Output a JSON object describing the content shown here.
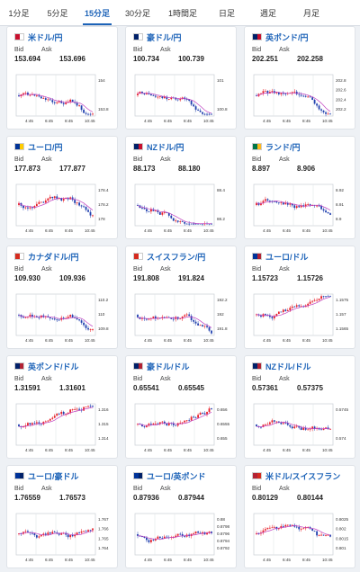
{
  "tabs": [
    {
      "label": "1分足",
      "w": 42
    },
    {
      "label": "5分足",
      "w": 44
    },
    {
      "label": "15分足",
      "w": 44,
      "active": true
    },
    {
      "label": "30分足",
      "w": 46
    },
    {
      "label": "1時間足",
      "w": 54
    },
    {
      "label": "日足",
      "w": 44
    },
    {
      "label": "週足",
      "w": 48
    },
    {
      "label": "月足",
      "w": 48
    }
  ],
  "labels": {
    "bid": "Bid",
    "ask": "Ask"
  },
  "pairs": [
    {
      "name": "米ドル/円",
      "bid": "153.694",
      "ask": "153.696",
      "flag": [
        "#c8102e",
        "#ffffff"
      ],
      "yticks": [
        "154",
        "153.8"
      ],
      "xticks": [
        "4:45",
        "6:45",
        "8:45",
        "10:45"
      ],
      "trend": "fall"
    },
    {
      "name": "豪ドル/円",
      "bid": "100.734",
      "ask": "100.739",
      "flag": [
        "#012169",
        "#ffffff"
      ],
      "yticks": [
        "101",
        "100.8"
      ],
      "xticks": [
        "4:45",
        "6:45",
        "8:45",
        "10:45"
      ],
      "trend": "fall"
    },
    {
      "name": "英ポンド/円",
      "bid": "202.251",
      "ask": "202.258",
      "flag": [
        "#012169",
        "#c8102e"
      ],
      "yticks": [
        "202.8",
        "202.6",
        "202.4",
        "202.2"
      ],
      "xticks": [
        "4:45",
        "6:45",
        "8:45",
        "10:45"
      ],
      "trend": "fall"
    },
    {
      "name": "ユーロ/円",
      "bid": "177.873",
      "ask": "177.877",
      "flag": [
        "#003399",
        "#ffcc00"
      ],
      "yticks": [
        "178.4",
        "178.2",
        "178"
      ],
      "xticks": [
        "4:45",
        "6:45",
        "8:45",
        "10:45"
      ],
      "trend": "fall"
    },
    {
      "name": "NZドル/円",
      "bid": "88.173",
      "ask": "88.180",
      "flag": [
        "#012169",
        "#c8102e"
      ],
      "yticks": [
        "88.4",
        "88.2"
      ],
      "xticks": [
        "4:45",
        "6:45",
        "8:45",
        "10:45"
      ],
      "trend": "fall"
    },
    {
      "name": "ランド/円",
      "bid": "8.897",
      "ask": "8.906",
      "flag": [
        "#007749",
        "#ffb81c"
      ],
      "yticks": [
        "8.92",
        "8.91",
        "8.9"
      ],
      "xticks": [
        "4:45",
        "6:45",
        "8:45",
        "10:45"
      ],
      "trend": "fall"
    },
    {
      "name": "カナダドル/円",
      "bid": "109.930",
      "ask": "109.936",
      "flag": [
        "#d52b1e",
        "#ffffff"
      ],
      "yticks": [
        "110.2",
        "110",
        "109.8"
      ],
      "xticks": [
        "4:45",
        "6:45",
        "8:45",
        "10:45"
      ],
      "trend": "fall"
    },
    {
      "name": "スイスフラン/円",
      "bid": "191.808",
      "ask": "191.824",
      "flag": [
        "#d52b1e",
        "#ffffff"
      ],
      "yticks": [
        "192.2",
        "192",
        "191.8"
      ],
      "xticks": [
        "4:45",
        "6:45",
        "8:45",
        "10:45"
      ],
      "trend": "fall"
    },
    {
      "name": "ユーロ/ドル",
      "bid": "1.15723",
      "ask": "1.15726",
      "flag": [
        "#003399",
        "#b22234"
      ],
      "yticks": [
        "1.1575",
        "1.157",
        "1.1565"
      ],
      "xticks": [
        "4:45",
        "6:45",
        "8:45",
        "10:45"
      ],
      "trend": "rise"
    },
    {
      "name": "英ポンド/ドル",
      "bid": "1.31591",
      "ask": "1.31601",
      "flag": [
        "#012169",
        "#b22234"
      ],
      "yticks": [
        "1.316",
        "1.315",
        "1.314"
      ],
      "xticks": [
        "4:45",
        "6:45",
        "8:45",
        "10:45"
      ],
      "trend": "rise"
    },
    {
      "name": "豪ドル/ドル",
      "bid": "0.65541",
      "ask": "0.65545",
      "flag": [
        "#012169",
        "#b22234"
      ],
      "yticks": [
        "0.656",
        "0.6555",
        "0.655"
      ],
      "xticks": [
        "4:45",
        "6:45",
        "8:45",
        "10:45"
      ],
      "trend": "rise"
    },
    {
      "name": "NZドル/ドル",
      "bid": "0.57361",
      "ask": "0.57375",
      "flag": [
        "#012169",
        "#b22234"
      ],
      "yticks": [
        "0.5745",
        "0.574"
      ],
      "xticks": [
        "4:45",
        "6:45",
        "8:45",
        "10:45"
      ],
      "trend": "flat"
    },
    {
      "name": "ユーロ/豪ドル",
      "bid": "1.76559",
      "ask": "1.76573",
      "flag": [
        "#003399",
        "#012169"
      ],
      "yticks": [
        "1.767",
        "1.766",
        "1.765",
        "1.764"
      ],
      "xticks": [
        "4:45",
        "6:45",
        "8:45",
        "10:45"
      ],
      "trend": "flat"
    },
    {
      "name": "ユーロ/英ポンド",
      "bid": "0.87936",
      "ask": "0.87944",
      "flag": [
        "#003399",
        "#012169"
      ],
      "yticks": [
        "0.88",
        "0.8798",
        "0.8796",
        "0.8794",
        "0.8792"
      ],
      "xticks": [
        "4:45",
        "6:45",
        "8:45",
        "10:45"
      ],
      "trend": "flat"
    },
    {
      "name": "米ドル/スイスフラン",
      "bid": "0.80129",
      "ask": "0.80144",
      "flag": [
        "#b22234",
        "#d52b1e"
      ],
      "yticks": [
        "0.8025",
        "0.802",
        "0.8015",
        "0.801"
      ],
      "xticks": [
        "4:45",
        "6:45",
        "8:45",
        "10:45"
      ],
      "trend": "fall"
    }
  ],
  "colors": {
    "up": "#e8202a",
    "down": "#1f3fae",
    "ma": "#c040c0",
    "accent": "#1d63b8"
  }
}
